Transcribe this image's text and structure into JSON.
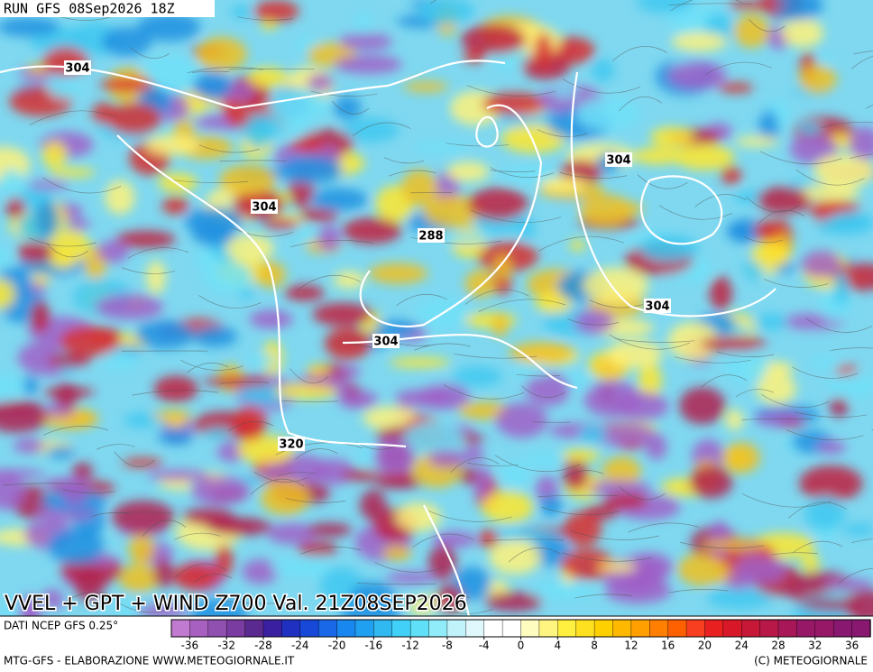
{
  "header": {
    "run": "RUN GFS 08Sep2026 18Z"
  },
  "map": {
    "title": "VVEL + GPT + WIND Z700 Val. 21Z08SEP2026",
    "contour_labels": [
      "304",
      "304",
      "304",
      "304",
      "304",
      "288",
      "320"
    ]
  },
  "legend": {
    "source": "DATI NCEP GFS 0.25°",
    "clim": [
      -38,
      38
    ],
    "ticks": [
      -36,
      -32,
      -28,
      -24,
      -20,
      -16,
      -12,
      -8,
      -4,
      0,
      4,
      8,
      12,
      16,
      20,
      24,
      28,
      32,
      36
    ],
    "colors": [
      "#c07ad0",
      "#a860c0",
      "#9050b0",
      "#7a3ca0",
      "#5a2a90",
      "#3a20a0",
      "#2030c0",
      "#1848d8",
      "#1868e8",
      "#1888f0",
      "#20a0f0",
      "#30b8f0",
      "#40d0f8",
      "#60e0f8",
      "#90ecf8",
      "#c0f4fa",
      "#e0f8fc",
      "#ffffff",
      "#ffffff",
      "#fffcc0",
      "#fff480",
      "#fff040",
      "#ffe020",
      "#ffd000",
      "#ffb800",
      "#ffa000",
      "#ff8000",
      "#ff6000",
      "#f84020",
      "#e82020",
      "#d81828",
      "#c81838",
      "#b81848",
      "#a81858",
      "#981868",
      "#981868",
      "#881870",
      "#881870"
    ]
  },
  "footer": {
    "left": "MTG-GFS - ELABORAZIONE WWW.METEOGIORNALE.IT",
    "right": "(C) METEOGIORNALE"
  }
}
